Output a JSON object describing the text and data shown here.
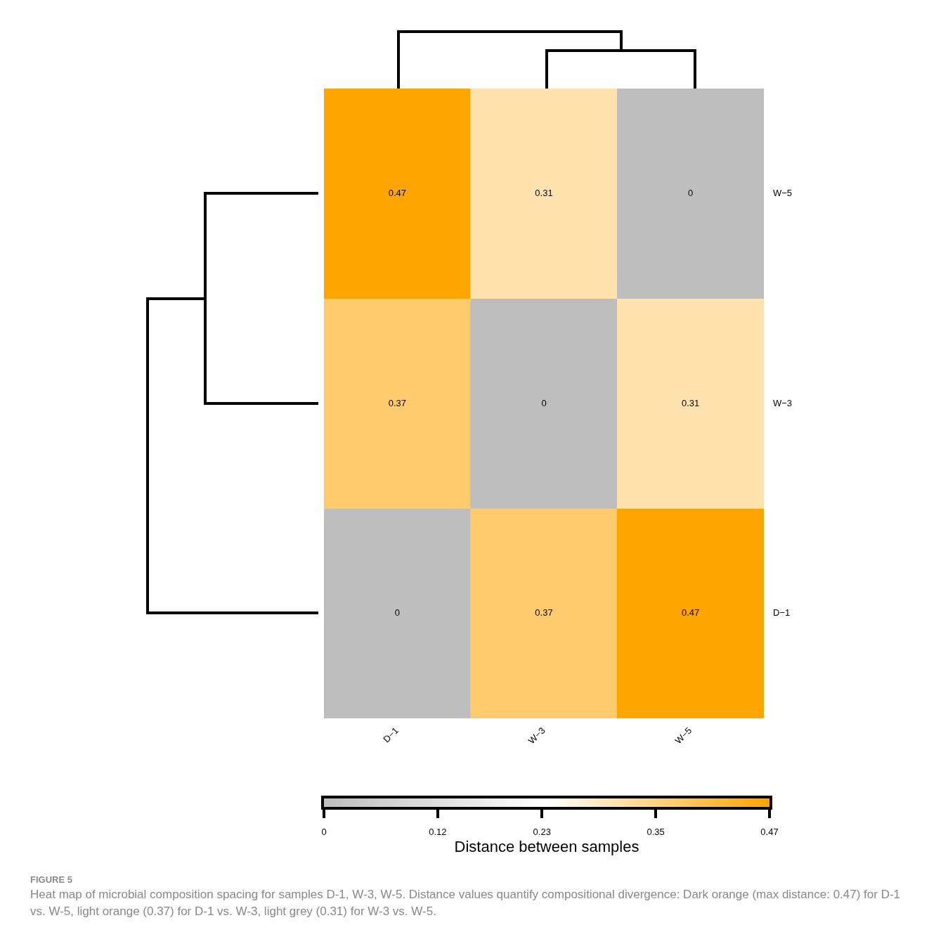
{
  "chart_data": {
    "type": "heatmap",
    "categories": [
      "D−1",
      "W−3",
      "W−5"
    ],
    "y_categories": [
      "W−5",
      "W−3",
      "D−1"
    ],
    "cells": [
      [
        0.47,
        0.31,
        0
      ],
      [
        0.37,
        0,
        0.31
      ],
      [
        0,
        0.37,
        0.47
      ]
    ],
    "data_labels": true,
    "clim": [
      0,
      0.47
    ],
    "cticks": [
      0,
      0.12,
      0.23,
      0.35,
      0.47
    ],
    "clabel": "Distance between samples",
    "legend": false,
    "grid": false,
    "annotations": [
      "FIGURE 5",
      "Heat map of microbial composition spacing for samples D-1, W-3, W-5. Distance values quantify compositional divergence: Dark orange (max distance: 0.47) for D-1 vs. W-5, light orange (0.37) for D-1 vs. W-3, light grey (0.31) for W-3 vs. W-5."
    ]
  }
}
